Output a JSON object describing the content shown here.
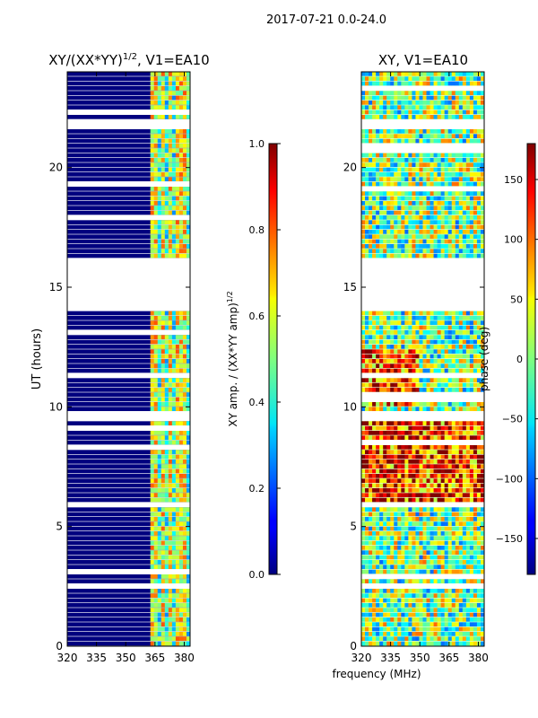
{
  "suptitle": "2017-07-21 0.0-24.0",
  "shared_xlabel": "frequency (MHz)",
  "chart_data": [
    {
      "type": "heatmap",
      "title_main": "XY/(XX*YY)",
      "title_exp": "1/2",
      "title_tail": ", V1=EA10",
      "xlabel": "",
      "ylabel": "UT (hours)",
      "xlim": [
        320,
        383
      ],
      "ylim": [
        0,
        24
      ],
      "xticks": [
        320,
        335,
        350,
        365,
        380
      ],
      "yticks": [
        0,
        5,
        10,
        15,
        20
      ],
      "background": "#00007f",
      "active_band_mhz": [
        363.5,
        382
      ],
      "bright_channels_mhz": [
        364.5,
        369.5,
        372.5,
        377.5,
        380
      ],
      "gap_hours": [
        [
          14.0,
          16.1
        ],
        [
          21.7,
          22.0
        ],
        [
          9.5,
          9.7
        ],
        [
          5.7,
          5.9
        ],
        [
          2.4,
          2.5
        ]
      ],
      "colorbar": {
        "label_main": "XY amp. / (XX*YY amp)",
        "label_exp": "1/2",
        "range": [
          0.0,
          1.0
        ],
        "ticks": [
          "0.0",
          "0.2",
          "0.4",
          "0.6",
          "0.8",
          "1.0"
        ]
      }
    },
    {
      "type": "heatmap",
      "title_main": "XY, V1=EA10",
      "xlabel": "frequency (MHz)",
      "ylabel": "",
      "xlim": [
        320,
        383
      ],
      "ylim": [
        0,
        24
      ],
      "xticks": [
        320,
        335,
        350,
        365,
        380
      ],
      "yticks": [
        0,
        5,
        10,
        15,
        20
      ],
      "gap_hours": [
        [
          14.0,
          16.1
        ],
        [
          21.7,
          22.0
        ],
        [
          9.5,
          9.7
        ],
        [
          5.7,
          5.9
        ],
        [
          2.4,
          2.5
        ]
      ],
      "colorbar": {
        "label": "phase (deg)",
        "range": [
          -180,
          180
        ],
        "ticks": [
          "−150",
          "−100",
          "−50",
          "0",
          "50",
          "100",
          "150"
        ]
      }
    }
  ]
}
